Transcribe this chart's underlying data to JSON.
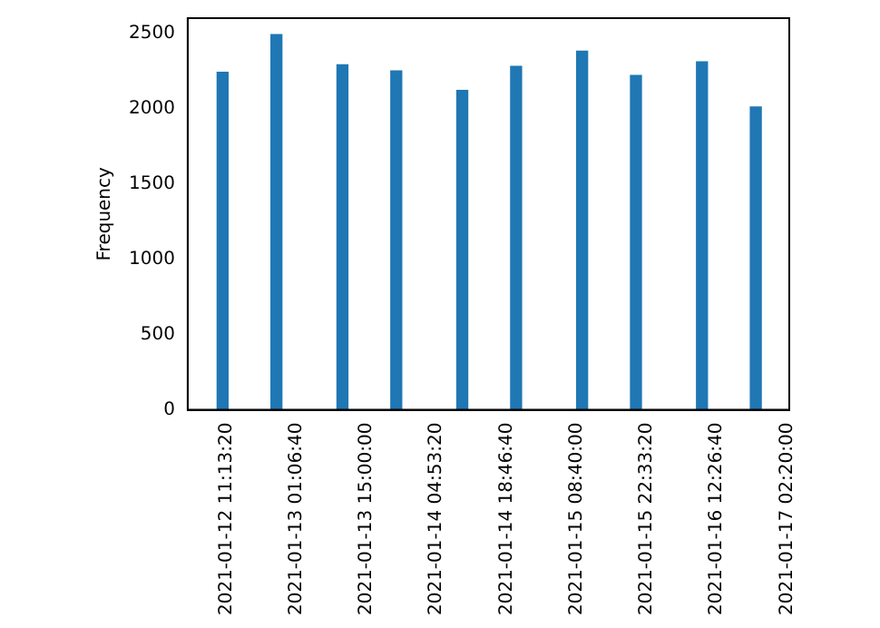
{
  "chart_data": {
    "type": "bar",
    "ylabel": "Frequency",
    "x": [
      "2021-01-12T10:30",
      "2021-01-12T21:10",
      "2021-01-13T10:15",
      "2021-01-13T20:55",
      "2021-01-14T10:00",
      "2021-01-14T20:40",
      "2021-01-15T09:45",
      "2021-01-15T20:25",
      "2021-01-16T09:30",
      "2021-01-16T20:10"
    ],
    "values": [
      2240,
      2490,
      2290,
      2250,
      2120,
      2280,
      2380,
      2220,
      2310,
      2010
    ],
    "color": "#1f77b4",
    "xlim": [
      "2021-01-12T03:35",
      "2021-01-17T02:48"
    ],
    "xticks": [
      {
        "value": "2021-01-12T11:13:20",
        "label": "2021-01-12 11:13:20"
      },
      {
        "value": "2021-01-13T01:06:40",
        "label": "2021-01-13 01:06:40"
      },
      {
        "value": "2021-01-13T15:00:00",
        "label": "2021-01-13 15:00:00"
      },
      {
        "value": "2021-01-14T04:53:20",
        "label": "2021-01-14 04:53:20"
      },
      {
        "value": "2021-01-14T18:46:40",
        "label": "2021-01-14 18:46:40"
      },
      {
        "value": "2021-01-15T08:40:00",
        "label": "2021-01-15 08:40:00"
      },
      {
        "value": "2021-01-15T22:33:20",
        "label": "2021-01-15 22:33:20"
      },
      {
        "value": "2021-01-16T12:26:40",
        "label": "2021-01-16 12:26:40"
      },
      {
        "value": "2021-01-17T02:20:00",
        "label": "2021-01-17 02:20:00"
      }
    ],
    "ylim": [
      0,
      2600
    ],
    "yticks": [
      0,
      500,
      1000,
      1500,
      2000,
      2500
    ],
    "grid": false,
    "legend": false
  }
}
